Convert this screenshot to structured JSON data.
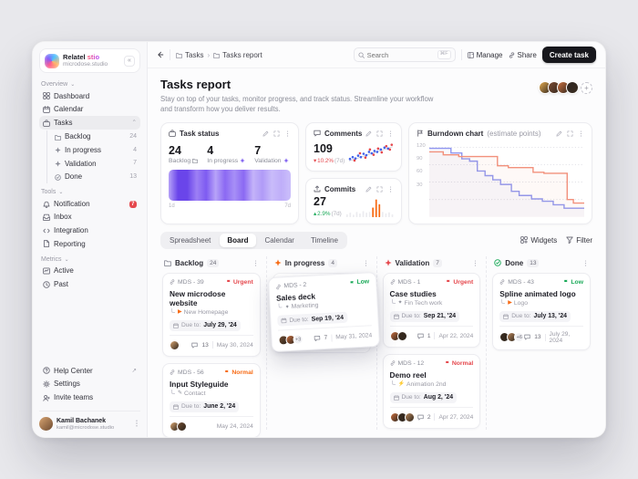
{
  "brand": {
    "name": "Relatel",
    "name_accent": "stio",
    "domain": "microdose.studio",
    "collapse_glyph": "«"
  },
  "sidebar": {
    "sections": [
      {
        "label": "Overview",
        "items": [
          {
            "icon": "dashboard",
            "label": "Dashboard"
          },
          {
            "icon": "calendar",
            "label": "Calendar"
          },
          {
            "icon": "briefcase",
            "label": "Tasks",
            "expanded": true,
            "active": true,
            "children": [
              {
                "icon": "folder",
                "label": "Backlog",
                "count": "24"
              },
              {
                "icon": "spark",
                "label": "In progress",
                "count": "4"
              },
              {
                "icon": "spark",
                "label": "Validation",
                "count": "7"
              },
              {
                "icon": "check",
                "label": "Done",
                "count": "13"
              }
            ]
          }
        ]
      },
      {
        "label": "Tools",
        "items": [
          {
            "icon": "bell",
            "label": "Notification",
            "badge": "7"
          },
          {
            "icon": "inbox",
            "label": "Inbox"
          },
          {
            "icon": "code",
            "label": "Integration"
          },
          {
            "icon": "doc",
            "label": "Reporting"
          }
        ]
      },
      {
        "label": "Metrics",
        "items": [
          {
            "icon": "pulse",
            "label": "Active"
          },
          {
            "icon": "clock",
            "label": "Past"
          }
        ]
      }
    ],
    "footer_items": [
      {
        "icon": "help",
        "label": "Help Center",
        "trail": "↗"
      },
      {
        "icon": "gear",
        "label": "Settings"
      },
      {
        "icon": "invite",
        "label": "Invite teams"
      }
    ],
    "user": {
      "name": "Kamil Bachanek",
      "email": "kamil@microdose.studio"
    }
  },
  "topbar": {
    "breadcrumb": [
      "Tasks",
      "Tasks report"
    ],
    "search_placeholder": "Search",
    "search_hint": "⌘F",
    "manage_label": "Manage",
    "share_label": "Share",
    "create_label": "Create task"
  },
  "page": {
    "title": "Tasks report",
    "subtitle": "Stay on top of your tasks, monitor progress, and track status. Streamline your workflow and transform how you deliver results.",
    "team_avatars": [
      "#e0a84e",
      "#7a4a32",
      "#c96f3f",
      "#2e2622"
    ],
    "add_member_glyph": "+"
  },
  "widgets": {
    "task_status": {
      "title": "Task status",
      "stats": [
        {
          "value": "24",
          "label": "Backlog",
          "icon": "folder",
          "icon_color": "#8b8d98"
        },
        {
          "value": "4",
          "label": "In progress",
          "icon": "spark",
          "icon_color": "#7c5cf0"
        },
        {
          "value": "7",
          "label": "Validation",
          "icon": "spark",
          "icon_color": "#7c5cf0"
        }
      ],
      "range_start": "1d",
      "range_end": "7d"
    },
    "comments": {
      "title": "Comments",
      "value": "109",
      "delta": "10.2%",
      "delta_suffix": " (7d)",
      "direction": "down"
    },
    "commits": {
      "title": "Commits",
      "value": "27",
      "delta": "2.9%",
      "delta_suffix": " (7d)",
      "direction": "up"
    },
    "burndown": {
      "title": "Burndown chart",
      "subtitle": "(estimate points)"
    }
  },
  "chart_data": [
    {
      "type": "heatmap",
      "name": "task_status_strip",
      "x_range": [
        "1d",
        "7d"
      ],
      "colors": [
        "#b7a3f8",
        "#6a45ea",
        "#6a45ea",
        "#9d80f5",
        "#7e5bf1",
        "#b7a3f8",
        "#8b69f3",
        "#a78ff6",
        "#8b69f3",
        "#c3b3f9",
        "#b09bf7",
        "#c9bcfa",
        "#bfaef9",
        "#cbbffa"
      ]
    },
    {
      "type": "scatter",
      "name": "comments_scatter",
      "series": [
        {
          "name": "internal",
          "color": "#4263eb",
          "points": [
            [
              4,
              22
            ],
            [
              10,
              30
            ],
            [
              16,
              24
            ],
            [
              22,
              36
            ],
            [
              28,
              30
            ],
            [
              34,
              44
            ],
            [
              40,
              38
            ],
            [
              46,
              52
            ],
            [
              52,
              46
            ],
            [
              58,
              56
            ],
            [
              64,
              52
            ],
            [
              72,
              62
            ],
            [
              80,
              70
            ],
            [
              88,
              66
            ]
          ]
        },
        {
          "name": "external",
          "color": "#e5484d",
          "points": [
            [
              14,
              16
            ],
            [
              26,
              46
            ],
            [
              38,
              28
            ],
            [
              48,
              62
            ],
            [
              56,
              40
            ],
            [
              66,
              66
            ],
            [
              74,
              50
            ],
            [
              84,
              76
            ],
            [
              92,
              62
            ],
            [
              96,
              82
            ]
          ]
        }
      ],
      "trend_line": [
        [
          2,
          14
        ],
        [
          98,
          74
        ]
      ],
      "trend_color": "#c9c9d2"
    },
    {
      "type": "bar",
      "name": "commits_bars",
      "values": [
        14,
        22,
        12,
        26,
        18,
        30,
        22,
        26,
        48,
        88,
        64,
        26,
        18,
        24,
        14
      ],
      "highlight_indices": [
        8,
        9,
        10
      ],
      "highlight_color": "#f76b15",
      "base_color": "#ececf0"
    },
    {
      "type": "line",
      "name": "burndown",
      "title": "Burndown chart (estimate points)",
      "yticks": [
        120,
        90,
        60,
        30
      ],
      "ylim": [
        0,
        130
      ],
      "grid": "dotted",
      "series": [
        {
          "name": "remaining",
          "color": "#9097f0",
          "points": [
            [
              0,
              118
            ],
            [
              14,
              118
            ],
            [
              14,
              110
            ],
            [
              21,
              110
            ],
            [
              21,
              100
            ],
            [
              26,
              100
            ],
            [
              26,
              96
            ],
            [
              31,
              96
            ],
            [
              31,
              79
            ],
            [
              36,
              79
            ],
            [
              36,
              71
            ],
            [
              41,
              71
            ],
            [
              41,
              64
            ],
            [
              46,
              64
            ],
            [
              46,
              56
            ],
            [
              53,
              56
            ],
            [
              53,
              44
            ],
            [
              58,
              44
            ],
            [
              58,
              37
            ],
            [
              66,
              37
            ],
            [
              66,
              31
            ],
            [
              73,
              31
            ],
            [
              73,
              27
            ],
            [
              80,
              27
            ],
            [
              80,
              21
            ],
            [
              87,
              21
            ],
            [
              87,
              15
            ],
            [
              100,
              15
            ]
          ]
        },
        {
          "name": "estimate",
          "color": "#f2917c",
          "points": [
            [
              0,
              112
            ],
            [
              9,
              112
            ],
            [
              9,
              107
            ],
            [
              19,
              107
            ],
            [
              19,
              104
            ],
            [
              44,
              104
            ],
            [
              44,
              88
            ],
            [
              51,
              88
            ],
            [
              51,
              85
            ],
            [
              67,
              85
            ],
            [
              67,
              77
            ],
            [
              74,
              77
            ],
            [
              74,
              75
            ],
            [
              89,
              75
            ],
            [
              89,
              30
            ],
            [
              93,
              30
            ],
            [
              93,
              24
            ],
            [
              100,
              24
            ]
          ]
        }
      ]
    }
  ],
  "tabs": {
    "items": [
      "Spreadsheet",
      "Board",
      "Calendar",
      "Timeline"
    ],
    "active": "Board",
    "widgets_label": "Widgets",
    "filter_label": "Filter"
  },
  "board": {
    "due_label": "Due to:",
    "columns": [
      {
        "name": "Backlog",
        "count": "24",
        "icon": "folder",
        "icon_color": "#8b8d98",
        "cards": [
          {
            "id": "MDS - 39",
            "priority": "Urgent",
            "priority_color": "#e5484d",
            "title": "New microdose website",
            "subtask": "New Homepage",
            "sub_glyph": "▶",
            "sub_color": "#f76b15",
            "due": "July 29, '24",
            "avatars": 1,
            "comments": "13",
            "date": "May 30, 2024"
          },
          {
            "id": "MDS - 56",
            "priority": "Normal",
            "priority_color": "#f76b15",
            "title": "Input Styleguide",
            "subtask": "Contact",
            "sub_glyph": "✎",
            "sub_color": "#8b8d98",
            "due": "June 2, '24",
            "avatars": 2,
            "comments": null,
            "date": "May 24, 2024"
          }
        ]
      },
      {
        "name": "In progress",
        "count": "4",
        "icon": "spark",
        "icon_color": "#f76b15",
        "cards": [
          {
            "id": "MDS - 2",
            "priority": "Low",
            "priority_color": "#18a957",
            "title": "Sales deck",
            "subtask": "Marketing",
            "sub_glyph": "✦",
            "sub_color": "#8b8d98",
            "due": "Sep 19, '24",
            "avatars": 2,
            "extra": "+3",
            "comments": "7",
            "date": "May 31, 2024",
            "floating": true
          }
        ]
      },
      {
        "name": "Validation",
        "count": "7",
        "icon": "spark",
        "icon_color": "#e5484d",
        "cards": [
          {
            "id": "MDS - 1",
            "priority": "Urgent",
            "priority_color": "#e5484d",
            "title": "Case studies",
            "subtask": "Fin Tech work",
            "sub_glyph": "✦",
            "sub_color": "#8b8d98",
            "due": "Sep 21, '24",
            "avatars": 2,
            "comments": "1",
            "date": "Apr 22, 2024"
          },
          {
            "id": "MDS - 12",
            "priority": "Normal",
            "priority_color": "#e5484d",
            "title": "Demo reel",
            "subtask": "Animation 2nd",
            "sub_glyph": "⚡",
            "sub_color": "#f76b15",
            "due": "Aug 2, '24",
            "avatars": 3,
            "comments": "2",
            "date": "Apr 27, 2024"
          }
        ]
      },
      {
        "name": "Done",
        "count": "13",
        "icon": "check",
        "icon_color": "#18a957",
        "cards": [
          {
            "id": "MDS - 43",
            "priority": "Low",
            "priority_color": "#18a957",
            "title": "Spline animated logo",
            "subtask": "Logo",
            "sub_glyph": "▶",
            "sub_color": "#f76b15",
            "due": "July 13, '24",
            "avatars": 2,
            "extra": "+6",
            "comments": "13",
            "date": "July 29, 2024"
          }
        ]
      }
    ]
  }
}
